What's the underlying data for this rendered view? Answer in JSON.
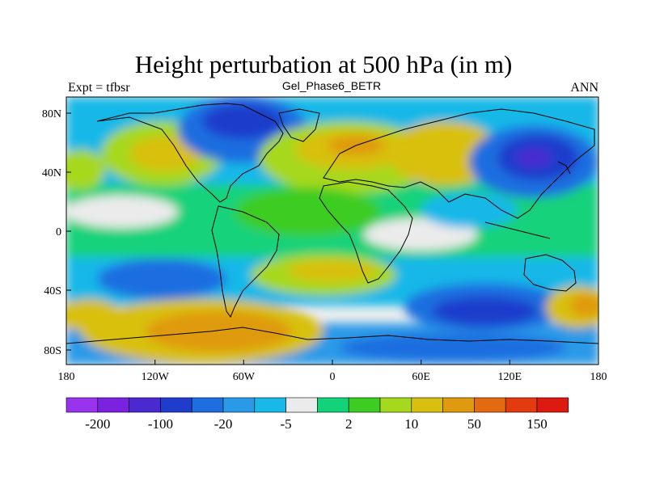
{
  "title": "Height perturbation at 500 hPa (in m)",
  "left_label": "Expt = tfbsr",
  "center_label": "Gel_Phase6_BETR",
  "right_label": "ANN",
  "map": {
    "lon_ticks": [
      "180",
      "120W",
      "60W",
      "0",
      "60E",
      "120E",
      "180"
    ],
    "lat_ticks": [
      "80N",
      "40N",
      "0",
      "40S",
      "80S"
    ],
    "ocean_color": "#eeeeee",
    "coastline_color": "#000000"
  },
  "colorbar": {
    "colors": [
      "#9933ee",
      "#7a22e0",
      "#4a2ad0",
      "#1f3ccc",
      "#1f6ee0",
      "#2a9ae8",
      "#18b8e8",
      "#ebebeb",
      "#12d27a",
      "#3ccc22",
      "#a6d81e",
      "#d8c010",
      "#e09a10",
      "#e36a10",
      "#e33a10",
      "#dd1a10"
    ],
    "labels": [
      "-200",
      "-100",
      "-20",
      "-5",
      "2",
      "10",
      "50",
      "150"
    ]
  }
}
